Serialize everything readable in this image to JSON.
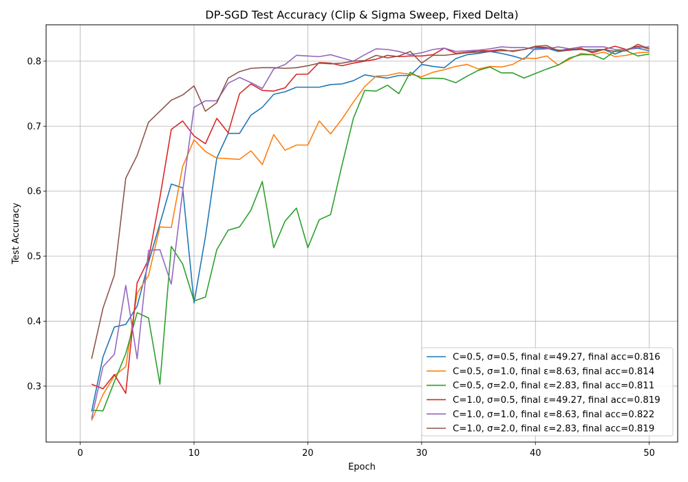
{
  "chart_data": {
    "type": "line",
    "title": "DP-SGD Test Accuracy (Clip & Sigma Sweep, Fixed Delta)",
    "xlabel": "Epoch",
    "ylabel": "Test Accuracy",
    "xlim": [
      -3,
      52.5
    ],
    "ylim": [
      0.214,
      0.856
    ],
    "xticks": [
      0,
      10,
      20,
      30,
      40,
      50
    ],
    "yticks": [
      0.3,
      0.4,
      0.5,
      0.6,
      0.7,
      0.8
    ],
    "ytick_labels": [
      "0.3",
      "0.4",
      "0.5",
      "0.6",
      "0.7",
      "0.8"
    ],
    "grid": true,
    "legend_position": "lower-right",
    "x": [
      1,
      2,
      3,
      4,
      5,
      6,
      7,
      8,
      9,
      10,
      11,
      12,
      13,
      14,
      15,
      16,
      17,
      18,
      19,
      20,
      21,
      22,
      23,
      24,
      25,
      26,
      27,
      28,
      29,
      30,
      31,
      32,
      33,
      34,
      35,
      36,
      37,
      38,
      39,
      40,
      41,
      42,
      43,
      44,
      45,
      46,
      47,
      48,
      49,
      50
    ],
    "series": [
      {
        "name": "C=0.5, σ=0.5, final ε=49.27, final acc=0.816",
        "color": "#1f77b4",
        "values": [
          0.261,
          0.345,
          0.391,
          0.395,
          0.423,
          0.49,
          0.55,
          0.611,
          0.605,
          0.428,
          0.53,
          0.651,
          0.689,
          0.689,
          0.717,
          0.729,
          0.749,
          0.753,
          0.76,
          0.76,
          0.76,
          0.764,
          0.765,
          0.77,
          0.779,
          0.776,
          0.774,
          0.778,
          0.778,
          0.795,
          0.792,
          0.79,
          0.804,
          0.81,
          0.812,
          0.815,
          0.812,
          0.808,
          0.803,
          0.82,
          0.82,
          0.815,
          0.817,
          0.818,
          0.818,
          0.818,
          0.811,
          0.818,
          0.82,
          0.816
        ]
      },
      {
        "name": "C=0.5, σ=1.0, final ε=8.63, final acc=0.814",
        "color": "#ff7f0e",
        "values": [
          0.247,
          0.287,
          0.316,
          0.33,
          0.443,
          0.47,
          0.545,
          0.544,
          0.638,
          0.679,
          0.661,
          0.651,
          0.65,
          0.649,
          0.662,
          0.641,
          0.687,
          0.663,
          0.671,
          0.671,
          0.708,
          0.688,
          0.711,
          0.737,
          0.761,
          0.777,
          0.778,
          0.782,
          0.78,
          0.776,
          0.783,
          0.787,
          0.792,
          0.795,
          0.788,
          0.792,
          0.791,
          0.795,
          0.805,
          0.804,
          0.808,
          0.794,
          0.803,
          0.812,
          0.81,
          0.814,
          0.807,
          0.809,
          0.813,
          0.814
        ]
      },
      {
        "name": "C=0.5, σ=2.0, final ε=2.83, final acc=0.811",
        "color": "#2ca02c",
        "values": [
          0.263,
          0.262,
          0.307,
          0.35,
          0.413,
          0.405,
          0.303,
          0.515,
          0.488,
          0.431,
          0.437,
          0.51,
          0.54,
          0.545,
          0.571,
          0.615,
          0.513,
          0.554,
          0.574,
          0.513,
          0.556,
          0.564,
          0.64,
          0.712,
          0.755,
          0.754,
          0.763,
          0.75,
          0.783,
          0.773,
          0.774,
          0.773,
          0.767,
          0.777,
          0.786,
          0.791,
          0.782,
          0.782,
          0.774,
          0.781,
          0.788,
          0.794,
          0.805,
          0.81,
          0.81,
          0.803,
          0.816,
          0.816,
          0.808,
          0.811
        ]
      },
      {
        "name": "C=1.0, σ=0.5, final ε=49.27, final acc=0.819",
        "color": "#d62728",
        "values": [
          0.303,
          0.296,
          0.318,
          0.289,
          0.459,
          0.495,
          0.59,
          0.695,
          0.708,
          0.685,
          0.673,
          0.712,
          0.69,
          0.75,
          0.765,
          0.755,
          0.754,
          0.759,
          0.78,
          0.78,
          0.798,
          0.797,
          0.793,
          0.797,
          0.8,
          0.803,
          0.809,
          0.807,
          0.808,
          0.808,
          0.81,
          0.82,
          0.812,
          0.814,
          0.816,
          0.816,
          0.818,
          0.815,
          0.818,
          0.822,
          0.821,
          0.817,
          0.817,
          0.82,
          0.813,
          0.818,
          0.823,
          0.818,
          0.823,
          0.819
        ]
      },
      {
        "name": "C=1.0, σ=1.0, final ε=8.63, final acc=0.822",
        "color": "#9467bd",
        "values": [
          0.25,
          0.33,
          0.349,
          0.455,
          0.342,
          0.509,
          0.51,
          0.457,
          0.6,
          0.729,
          0.739,
          0.739,
          0.766,
          0.775,
          0.767,
          0.758,
          0.788,
          0.795,
          0.809,
          0.808,
          0.807,
          0.81,
          0.805,
          0.8,
          0.81,
          0.819,
          0.818,
          0.815,
          0.81,
          0.813,
          0.818,
          0.82,
          0.815,
          0.816,
          0.817,
          0.819,
          0.822,
          0.821,
          0.821,
          0.818,
          0.819,
          0.822,
          0.819,
          0.822,
          0.822,
          0.822,
          0.818,
          0.818,
          0.821,
          0.822
        ]
      },
      {
        "name": "C=1.0, σ=2.0, final ε=2.83, final acc=0.819",
        "color": "#8c564b",
        "values": [
          0.342,
          0.42,
          0.471,
          0.62,
          0.655,
          0.706,
          0.723,
          0.74,
          0.748,
          0.762,
          0.723,
          0.736,
          0.774,
          0.784,
          0.789,
          0.79,
          0.79,
          0.789,
          0.79,
          0.793,
          0.797,
          0.796,
          0.797,
          0.8,
          0.801,
          0.809,
          0.805,
          0.808,
          0.815,
          0.797,
          0.809,
          0.809,
          0.811,
          0.813,
          0.814,
          0.815,
          0.816,
          0.816,
          0.818,
          0.823,
          0.824,
          0.816,
          0.819,
          0.818,
          0.815,
          0.818,
          0.815,
          0.816,
          0.826,
          0.819
        ]
      }
    ]
  }
}
